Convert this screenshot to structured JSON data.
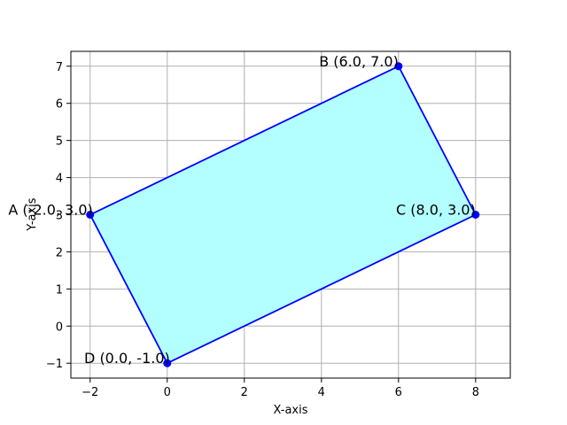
{
  "chart_data": {
    "type": "line",
    "xlabel": "X-axis",
    "ylabel": "Y-axis",
    "xlim": [
      -2.5,
      8.9
    ],
    "ylim": [
      -1.4,
      7.4
    ],
    "x_ticks": [
      -2,
      0,
      2,
      4,
      6,
      8
    ],
    "y_ticks": [
      -1,
      0,
      1,
      2,
      3,
      4,
      5,
      6,
      7
    ],
    "grid": true,
    "fill_color": "#b3ffff",
    "line_color": "#0000ff",
    "point_color": "#0000ff",
    "points": [
      {
        "x": -2,
        "y": 3,
        "label": "A (-2.0, 3.0)"
      },
      {
        "x": 6,
        "y": 7,
        "label": "B (6.0, 7.0)"
      },
      {
        "x": 8,
        "y": 3,
        "label": "C (8.0, 3.0)"
      },
      {
        "x": 0,
        "y": -1,
        "label": "D (0.0, -1.0)"
      }
    ]
  }
}
